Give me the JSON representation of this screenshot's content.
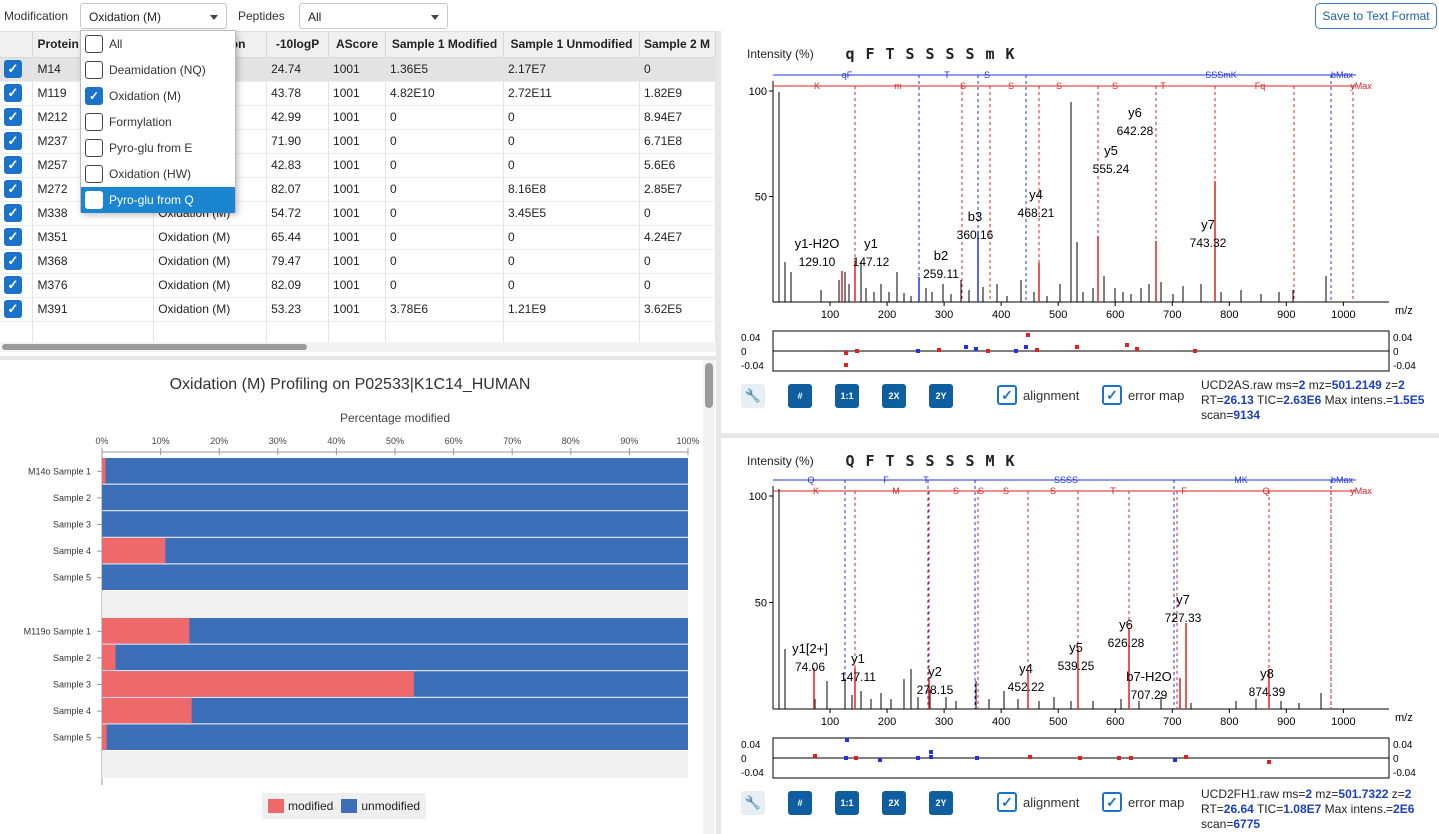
{
  "toolbar": {
    "modification_label": "Modification",
    "modification_value": "Oxidation (M)",
    "peptides_label": "Peptides",
    "peptides_value": "All",
    "save_button": "Save to Text Format"
  },
  "dropdown": {
    "items": [
      {
        "label": "All",
        "checked": false
      },
      {
        "label": "Deamidation (NQ)",
        "checked": false
      },
      {
        "label": "Oxidation (M)",
        "checked": true
      },
      {
        "label": "Formylation",
        "checked": false
      },
      {
        "label": "Pyro-glu from E",
        "checked": false
      },
      {
        "label": "Oxidation (HW)",
        "checked": false
      },
      {
        "label": "Pyro-glu from Q",
        "checked": false,
        "highlighted": true
      }
    ]
  },
  "table": {
    "columns": [
      "Protein",
      "Modification",
      "-10logP",
      "AScore",
      "Sample 1 Modified",
      "Sample 1 Unmodified",
      "Sample 2 M"
    ],
    "rows": [
      {
        "protein": "M14",
        "mod": "",
        "logp": "24.74",
        "ascore": "1001",
        "s1m": "1.36E5",
        "s1u": "2.17E7",
        "s2m": "0"
      },
      {
        "protein": "M119",
        "mod": "",
        "logp": "43.78",
        "ascore": "1001",
        "s1m": "4.82E10",
        "s1u": "2.72E11",
        "s2m": "1.82E9"
      },
      {
        "protein": "M212",
        "mod": "",
        "logp": "42.99",
        "ascore": "1001",
        "s1m": "0",
        "s1u": "0",
        "s2m": "8.94E7"
      },
      {
        "protein": "M237",
        "mod": "",
        "logp": "71.90",
        "ascore": "1001",
        "s1m": "0",
        "s1u": "0",
        "s2m": "6.71E8"
      },
      {
        "protein": "M257",
        "mod": "",
        "logp": "42.83",
        "ascore": "1001",
        "s1m": "0",
        "s1u": "0",
        "s2m": "5.6E6"
      },
      {
        "protein": "M272",
        "mod": "",
        "logp": "82.07",
        "ascore": "1001",
        "s1m": "0",
        "s1u": "8.16E8",
        "s2m": "2.85E7"
      },
      {
        "protein": "M338",
        "mod": "Oxidation (M)",
        "logp": "54.72",
        "ascore": "1001",
        "s1m": "0",
        "s1u": "3.45E5",
        "s2m": "0"
      },
      {
        "protein": "M351",
        "mod": "Oxidation (M)",
        "logp": "65.44",
        "ascore": "1001",
        "s1m": "0",
        "s1u": "0",
        "s2m": "4.24E7"
      },
      {
        "protein": "M368",
        "mod": "Oxidation (M)",
        "logp": "79.47",
        "ascore": "1001",
        "s1m": "0",
        "s1u": "0",
        "s2m": "0"
      },
      {
        "protein": "M376",
        "mod": "Oxidation (M)",
        "logp": "82.09",
        "ascore": "1001",
        "s1m": "0",
        "s1u": "0",
        "s2m": "0"
      },
      {
        "protein": "M391",
        "mod": "Oxidation (M)",
        "logp": "53.23",
        "ascore": "1001",
        "s1m": "3.78E6",
        "s1u": "1.21E9",
        "s2m": "3.62E5"
      }
    ]
  },
  "profile_chart": {
    "title": "Oxidation (M) Profiling on P02533|K1C14_HUMAN",
    "xlabel": "Percentage modified",
    "ticks": [
      "0%",
      "10%",
      "20%",
      "30%",
      "40%",
      "50%",
      "60%",
      "70%",
      "80%",
      "90%",
      "100%"
    ],
    "legend": {
      "modified": "modified",
      "unmodified": "unmodified"
    },
    "colors": {
      "modified": "#ee6a6a",
      "unmodified": "#3d6fb8"
    },
    "groups": [
      {
        "bars": [
          {
            "label": "M14o Sample 1",
            "modified": 0.6
          },
          {
            "label": "Sample 2",
            "modified": 0
          },
          {
            "label": "Sample 3",
            "modified": 0
          },
          {
            "label": "Sample 4",
            "modified": 10.8
          },
          {
            "label": "Sample 5",
            "modified": 0
          }
        ]
      },
      {
        "bars": [
          {
            "label": "M119o Sample 1",
            "modified": 14.9
          },
          {
            "label": "Sample 2",
            "modified": 2.3
          },
          {
            "label": "Sample 3",
            "modified": 53.2
          },
          {
            "label": "Sample 4",
            "modified": 15.3
          },
          {
            "label": "Sample 5",
            "modified": 0.8
          }
        ]
      }
    ]
  },
  "spectrum1": {
    "intensity_label": "Intensity (%)",
    "sequence": [
      "q",
      "F",
      "T",
      "S",
      "S",
      "S",
      "S",
      "m",
      "K"
    ],
    "b_labels": [
      "qF",
      "T",
      "S",
      "SSSmK",
      "bMax"
    ],
    "y_labels": [
      "K",
      "m",
      "S",
      "S",
      "S",
      "S",
      "T",
      "Fq",
      "yMax"
    ],
    "xticks": [
      "100",
      "200",
      "300",
      "400",
      "500",
      "600",
      "700",
      "800",
      "900",
      "1000"
    ],
    "yticks": [
      "100",
      "50"
    ],
    "xunit": "m/z",
    "err_ticks": [
      "0.04",
      "0",
      "-0.04"
    ],
    "annotations": [
      {
        "ion": "y1-H2O",
        "mz": "129.10"
      },
      {
        "ion": "y1",
        "mz": "147.12"
      },
      {
        "ion": "b2",
        "mz": "259.11"
      },
      {
        "ion": "b3",
        "mz": "360.16"
      },
      {
        "ion": "y4",
        "mz": "468.21"
      },
      {
        "ion": "y5",
        "mz": "555.24"
      },
      {
        "ion": "y6",
        "mz": "642.28"
      },
      {
        "ion": "y7",
        "mz": "743.32"
      }
    ],
    "tools": [
      "#",
      "1:1",
      "2X",
      "2Y"
    ],
    "alignment": "alignment",
    "error_map": "error map",
    "info": {
      "file": "UCD2AS.raw",
      "ms": "2",
      "mz": "501.2149",
      "z": "2",
      "rt": "26.13",
      "tic": "2.63E6",
      "max": "1.5E5",
      "scan": "9134"
    }
  },
  "spectrum2": {
    "intensity_label": "Intensity (%)",
    "sequence": [
      "Q",
      "F",
      "T",
      "S",
      "S",
      "S",
      "S",
      "M",
      "K"
    ],
    "b_labels": [
      "Q",
      "F",
      "T",
      "SSSS",
      "MK",
      "bMax"
    ],
    "y_labels": [
      "K",
      "M",
      "S",
      "S",
      "S",
      "S",
      "T",
      "F",
      "Q",
      "yMax"
    ],
    "xticks": [
      "100",
      "200",
      "300",
      "400",
      "500",
      "600",
      "700",
      "800",
      "900",
      "1000"
    ],
    "yticks": [
      "100",
      "50"
    ],
    "xunit": "m/z",
    "err_ticks": [
      "0.04",
      "0",
      "-0.04"
    ],
    "annotations": [
      {
        "ion": "y1[2+]",
        "mz": "74.06"
      },
      {
        "ion": "y1",
        "mz": "147.11"
      },
      {
        "ion": "y2",
        "mz": "278.15"
      },
      {
        "ion": "y4",
        "mz": "452.22"
      },
      {
        "ion": "y5",
        "mz": "539.25"
      },
      {
        "ion": "y6",
        "mz": "626.28"
      },
      {
        "ion": "y7",
        "mz": "727.33"
      },
      {
        "ion": "b7-H2O",
        "mz": "707.29"
      },
      {
        "ion": "y8",
        "mz": "874.39"
      }
    ],
    "tools": [
      "#",
      "1:1",
      "2X",
      "2Y"
    ],
    "alignment": "alignment",
    "error_map": "error map",
    "info": {
      "file": "UCD2FH1.raw",
      "ms": "2",
      "mz": "501.7322",
      "z": "2",
      "rt": "26.64",
      "tic": "1.08E7",
      "max": "2E6",
      "scan": "6775"
    }
  }
}
